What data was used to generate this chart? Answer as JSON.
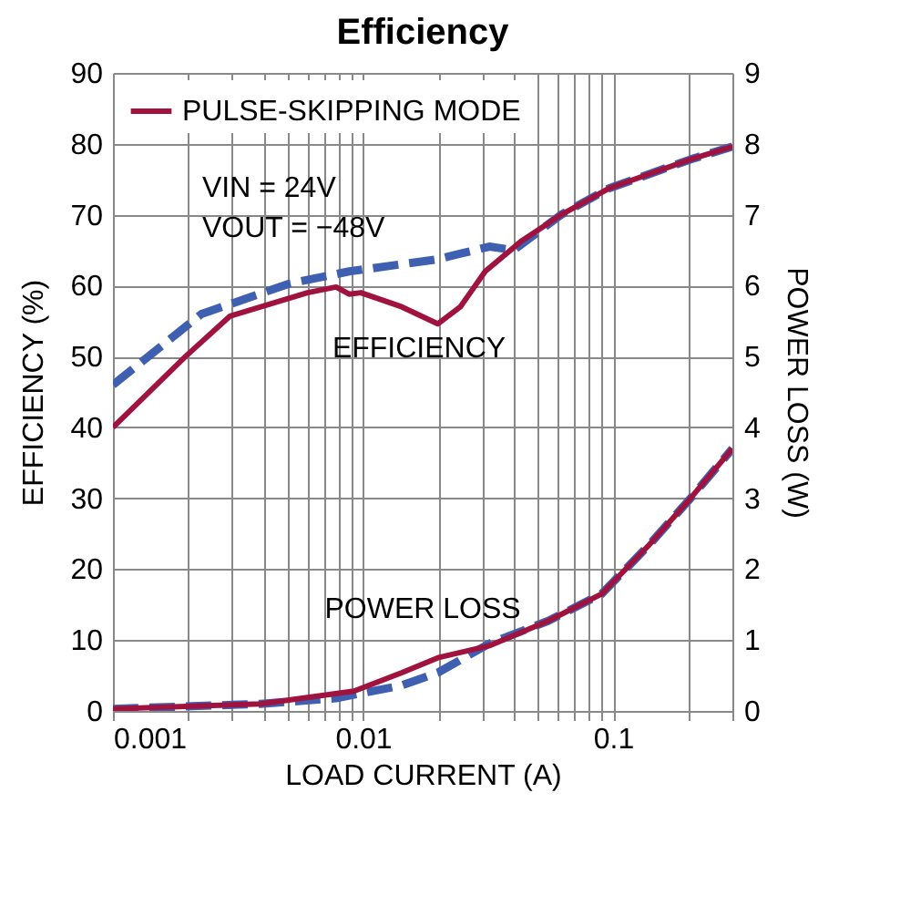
{
  "chart_data": {
    "type": "line",
    "title": "Efficiency",
    "xlabel": "LOAD CURRENT (A)",
    "ylabel": "EFFICIENCY (%)",
    "y2label": "POWER LOSS (W)",
    "log": "x",
    "grid": true,
    "legend": "top left",
    "xlim": [
      0.001,
      0.3
    ],
    "ylim": [
      0,
      90
    ],
    "y2lim": [
      0,
      9
    ],
    "xticks": [
      0.001,
      {
        "value": 0.002,
        "label": null
      },
      {
        "value": 0.003,
        "label": null
      },
      {
        "value": 0.004,
        "label": null
      },
      {
        "value": 0.005,
        "label": null
      },
      {
        "value": 0.006,
        "label": null
      },
      {
        "value": 0.007,
        "label": null
      },
      {
        "value": 0.008,
        "label": null
      },
      {
        "value": 0.009,
        "label": null
      },
      0.01,
      {
        "value": 0.02,
        "label": null
      },
      {
        "value": 0.03,
        "label": null
      },
      {
        "value": 0.04,
        "label": null
      },
      {
        "value": 0.05,
        "label": null
      },
      {
        "value": 0.06,
        "label": null
      },
      {
        "value": 0.07,
        "label": null
      },
      {
        "value": 0.08,
        "label": null
      },
      {
        "value": 0.09,
        "label": null
      },
      0.1,
      {
        "value": 0.2,
        "label": null
      },
      {
        "value": 0.3,
        "label": null
      }
    ],
    "yticks": [
      0,
      10,
      20,
      30,
      40,
      50,
      60,
      70,
      80,
      90
    ],
    "y2ticks": [
      0,
      1,
      2,
      3,
      4,
      5,
      6,
      7,
      8,
      9
    ],
    "series": [
      {
        "name": "PULSE-SKIPPING MODE",
        "color": "#a0133f",
        "line_style": "solid",
        "x": [
          0.001,
          0.00195,
          0.00294,
          0.006,
          0.0078,
          0.0088,
          0.0098,
          0.0143,
          0.0199,
          0.0245,
          0.0308,
          0.0427,
          0.062,
          0.096,
          0.204,
          0.3
        ],
        "values": [
          40,
          50,
          55.7,
          59,
          59.8,
          58.8,
          59,
          57,
          54.6,
          57,
          62,
          66.2,
          70,
          73.7,
          77.8,
          79.6
        ]
      },
      {
        "color": "#3f5fb0",
        "line_style": "dashed",
        "x": [
          0.001,
          0.00226,
          0.0051,
          0.0088,
          0.0198,
          0.032,
          0.04,
          0.062,
          0.096,
          0.204,
          0.3
        ],
        "values": [
          46,
          56,
          60.3,
          62,
          63.7,
          65.5,
          65,
          70,
          73.7,
          77.8,
          79.6
        ]
      },
      {
        "color": "#a0133f",
        "line_style": "solid",
        "axis": "y2",
        "x": [
          0.001,
          0.0039,
          0.0092,
          0.0143,
          0.0199,
          0.032,
          0.055,
          0.09,
          0.14,
          0.204,
          0.3
        ],
        "values": [
          0.03,
          0.1,
          0.28,
          0.54,
          0.75,
          0.92,
          1.27,
          1.65,
          2.35,
          3.0,
          3.7
        ]
      },
      {
        "color": "#3f5fb0",
        "line_style": "dashed",
        "axis": "y2",
        "x": [
          0.001,
          0.0039,
          0.0078,
          0.0143,
          0.0199,
          0.032,
          0.055,
          0.09,
          0.14,
          0.204,
          0.3
        ],
        "values": [
          0.03,
          0.1,
          0.18,
          0.36,
          0.54,
          0.95,
          1.27,
          1.65,
          2.35,
          3.0,
          3.7
        ]
      }
    ],
    "annotations": [
      "VIN = 24V",
      "VOUT = −48V",
      "EFFICIENCY",
      "POWER LOSS"
    ]
  }
}
